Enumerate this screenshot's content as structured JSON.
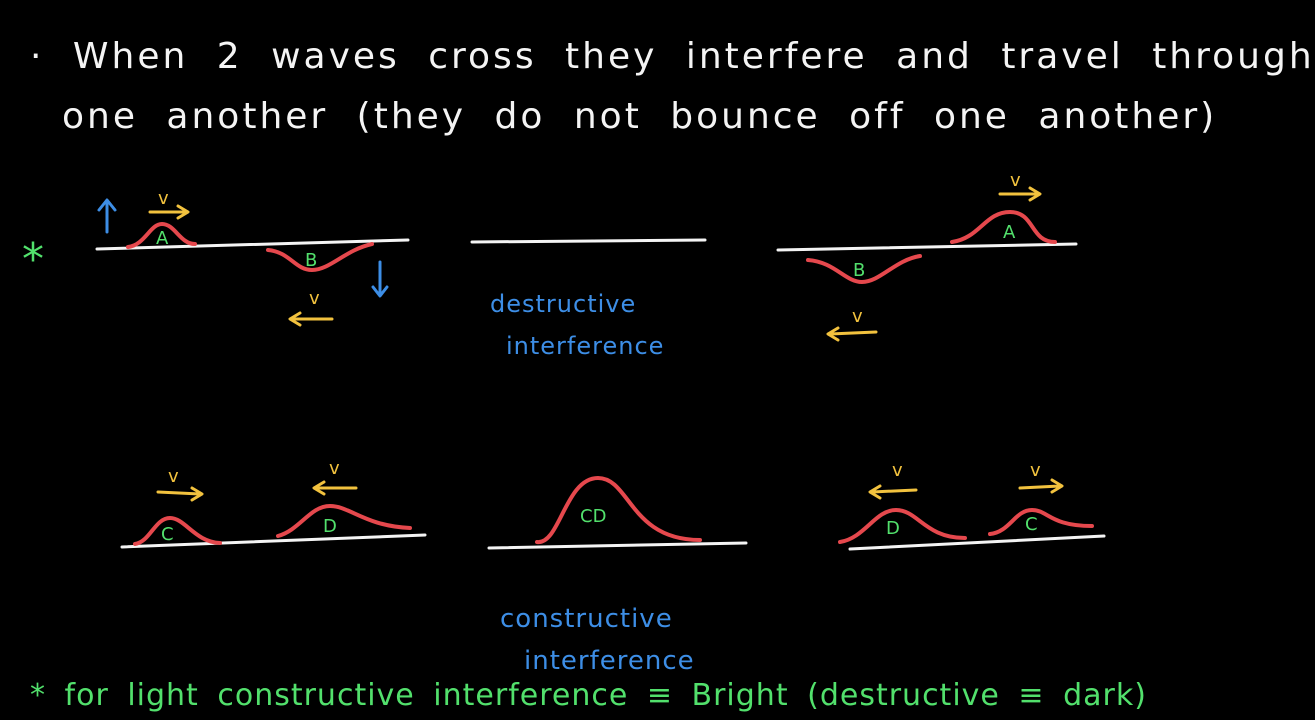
{
  "heading": {
    "bullet": "·",
    "line1": "When 2 waves cross they interfere and travel through",
    "line2": "one another (they do not bounce off one another)"
  },
  "labels": {
    "pulse_a": "A",
    "pulse_b": "B",
    "pulse_c": "C",
    "pulse_d": "D",
    "pulse_cd": "CD",
    "velocity": "v"
  },
  "destructive": {
    "line1": "destructive",
    "line2": "interference"
  },
  "constructive": {
    "line1": "constructive",
    "line2": "interference"
  },
  "note": {
    "star": "*",
    "text": "* for light constructive interference ≡ Bright (destructive ≡ dark)"
  },
  "colors": {
    "background": "#000000",
    "text": "#f4f4f4",
    "pulse": "#e5484d",
    "pulse_label": "#52e06c",
    "velocity": "#f2c23e",
    "interference_label": "#3d8ee6",
    "note": "#52e06c"
  }
}
